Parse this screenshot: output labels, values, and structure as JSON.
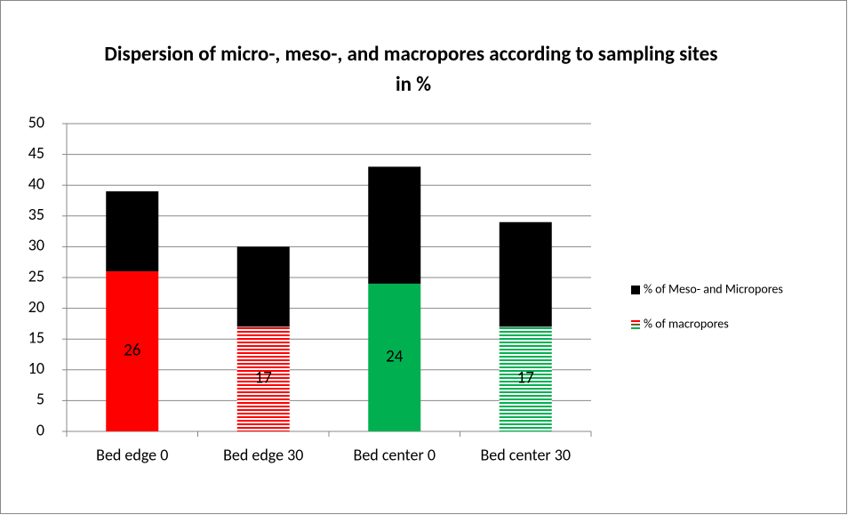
{
  "chart_data": {
    "type": "stacked_bar",
    "title": "Dispersion of micro-, meso-, and macropores according to sampling sites in %",
    "categories": [
      "Bed edge 0",
      "Bed edge 30",
      "Bed center 0",
      "Bed center 30"
    ],
    "series": [
      {
        "name": "% of macropores",
        "colors": [
          "#ff0000",
          "#ff0000",
          "#00b050",
          "#00b050"
        ],
        "patterns": [
          "solid",
          "striped",
          "solid",
          "striped"
        ],
        "values": [
          26,
          17,
          24,
          17
        ]
      },
      {
        "name": "% of Meso- and Micropores",
        "color": "#000000",
        "values": [
          13,
          13,
          19,
          17
        ]
      }
    ],
    "ylim": [
      0,
      50
    ],
    "yticks": [
      0,
      5,
      10,
      15,
      20,
      25,
      30,
      35,
      40,
      45,
      50
    ],
    "grid": true,
    "legend": "right"
  }
}
